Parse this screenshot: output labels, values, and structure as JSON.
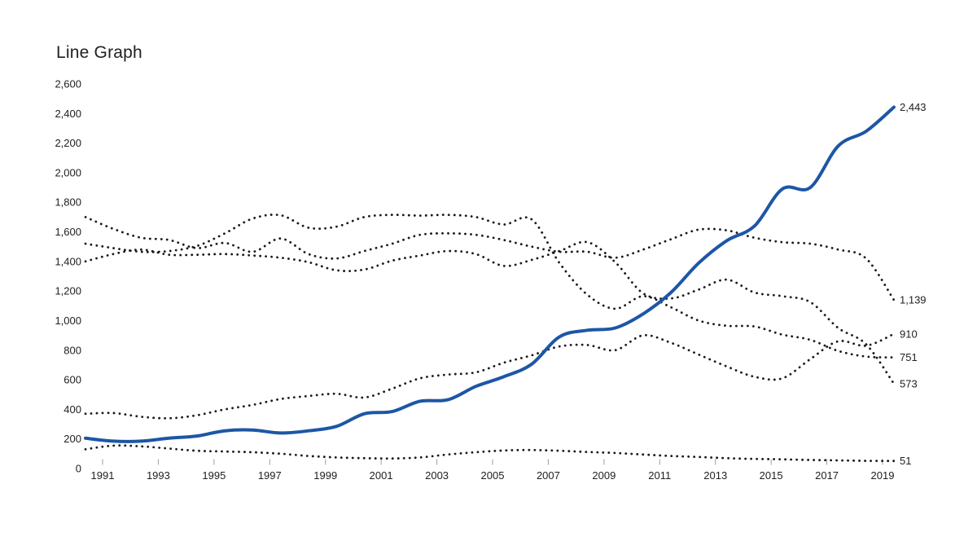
{
  "title": "Line Graph",
  "chart_data": {
    "type": "line",
    "title": "Line Graph",
    "grid": false,
    "legend_position": "none",
    "value_labels": "right-edge end labels",
    "background": "#ffffff",
    "text_color": "#212121",
    "years": [
      1990,
      1991,
      1992,
      1993,
      1994,
      1995,
      1996,
      1997,
      1998,
      1999,
      2000,
      2001,
      2002,
      2003,
      2004,
      2005,
      2006,
      2007,
      2008,
      2009,
      2010,
      2011,
      2012,
      2013,
      2014,
      2015,
      2016,
      2017,
      2018,
      2019
    ],
    "ylim": [
      0,
      2600
    ],
    "ytick_values": [
      0,
      200,
      400,
      600,
      800,
      1000,
      1200,
      1400,
      1600,
      1800,
      2000,
      2200,
      2400,
      2600
    ],
    "ytick_labels": [
      "0",
      "200",
      "400",
      "600",
      "800",
      "1,000",
      "1,200",
      "1,400",
      "1,600",
      "1,800",
      "2,000",
      "2,200",
      "2,400",
      "2,600"
    ],
    "xtick_years": [
      1991,
      1993,
      1995,
      1997,
      1999,
      2001,
      2003,
      2005,
      2007,
      2009,
      2011,
      2013,
      2015,
      2017,
      2019
    ],
    "xtick_labels": [
      "1991",
      "1993",
      "1995",
      "1997",
      "1999",
      "2001",
      "2003",
      "2005",
      "2007",
      "2009",
      "2011",
      "2013",
      "2015",
      "2017",
      "2019"
    ],
    "series": [
      {
        "name": "dotted-line-1139",
        "style": "dotted",
        "color": "#1a1a1a",
        "end_label": "1,139",
        "values": [
          1700,
          1620,
          1560,
          1545,
          1490,
          1525,
          1465,
          1555,
          1450,
          1420,
          1470,
          1520,
          1580,
          1590,
          1580,
          1545,
          1500,
          1465,
          1465,
          1425,
          1480,
          1550,
          1615,
          1610,
          1560,
          1530,
          1520,
          1480,
          1420,
          1139
        ]
      },
      {
        "name": "dotted-line-751",
        "style": "dotted",
        "color": "#1a1a1a",
        "end_label": "751",
        "values": [
          1520,
          1490,
          1465,
          1470,
          1505,
          1590,
          1690,
          1712,
          1628,
          1635,
          1700,
          1715,
          1710,
          1715,
          1700,
          1650,
          1685,
          1390,
          1175,
          1080,
          1165,
          1090,
          1000,
          965,
          960,
          905,
          870,
          795,
          757,
          751
        ]
      },
      {
        "name": "dotted-line-573",
        "style": "dotted",
        "color": "#1a1a1a",
        "end_label": "573",
        "values": [
          1400,
          1450,
          1480,
          1445,
          1445,
          1450,
          1440,
          1425,
          1395,
          1340,
          1345,
          1405,
          1440,
          1470,
          1450,
          1370,
          1410,
          1470,
          1530,
          1395,
          1185,
          1150,
          1210,
          1277,
          1190,
          1165,
          1125,
          950,
          840,
          573
        ]
      },
      {
        "name": "dotted-line-910",
        "style": "dotted",
        "color": "#1a1a1a",
        "end_label": "910",
        "values": [
          370,
          375,
          350,
          340,
          360,
          400,
          430,
          470,
          490,
          505,
          480,
          540,
          610,
          635,
          650,
          715,
          765,
          825,
          835,
          800,
          900,
          850,
          770,
          690,
          620,
          610,
          740,
          860,
          830,
          910
        ]
      },
      {
        "name": "dotted-line-51",
        "style": "dotted",
        "color": "#1a1a1a",
        "end_label": "51",
        "values": [
          130,
          155,
          150,
          135,
          120,
          115,
          110,
          100,
          85,
          75,
          70,
          68,
          75,
          95,
          110,
          122,
          125,
          120,
          112,
          105,
          95,
          85,
          78,
          70,
          65,
          62,
          58,
          55,
          52,
          51
        ]
      },
      {
        "name": "blue-solid-line-2443",
        "style": "solid",
        "color": "#1d56a6",
        "end_label": "2,443",
        "values": [
          205,
          185,
          185,
          205,
          220,
          255,
          260,
          240,
          255,
          285,
          370,
          385,
          455,
          465,
          555,
          620,
          705,
          890,
          935,
          950,
          1045,
          1190,
          1390,
          1540,
          1640,
          1890,
          1900,
          2180,
          2280,
          2443
        ]
      }
    ]
  }
}
